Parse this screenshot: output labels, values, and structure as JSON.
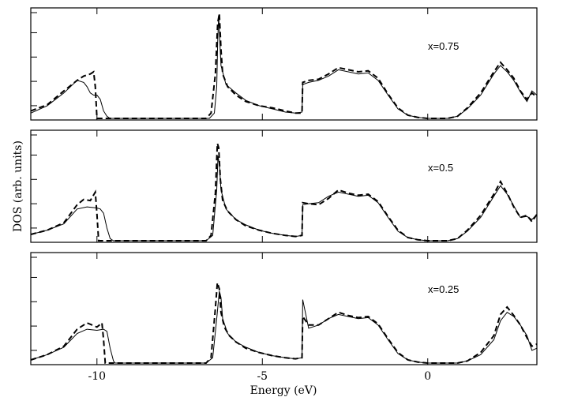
{
  "chart_data": {
    "type": "line",
    "xlabel": "Energy (eV)",
    "ylabel": "DOS  (arb. units)",
    "xlim": [
      -12,
      3.3
    ],
    "xticks": [
      -10,
      -5,
      0
    ],
    "xtick_labels": [
      "-10",
      "-5",
      "0"
    ],
    "ylim": [
      0,
      1
    ],
    "grid": false,
    "panels": [
      {
        "label": "x=0.75",
        "series": [
          {
            "style": "solid",
            "x": [
              -12.0,
              -11.5,
              -11.0,
              -10.6,
              -10.4,
              -10.3,
              -10.2,
              -10.1,
              -10.0,
              -9.9,
              -9.8,
              -9.7,
              -9.6,
              -9.5,
              -6.6,
              -6.45,
              -6.38,
              -6.35,
              -6.32,
              -6.3,
              -6.25,
              -6.1,
              -5.8,
              -5.5,
              -5.1,
              -4.7,
              -4.3,
              -4.0,
              -3.8,
              -3.78,
              -3.6,
              -3.3,
              -3.0,
              -2.7,
              -2.4,
              -2.1,
              -1.8,
              -1.5,
              -1.2,
              -0.9,
              -0.6,
              -0.3,
              0.0,
              0.3,
              0.6,
              0.9,
              1.2,
              1.6,
              2.0,
              2.2,
              2.4,
              2.6,
              2.8,
              3.0,
              3.15,
              3.3
            ],
            "y": [
              0.05,
              0.12,
              0.24,
              0.36,
              0.34,
              0.3,
              0.24,
              0.22,
              0.22,
              0.18,
              0.07,
              0.02,
              0.0,
              0.0,
              0.0,
              0.05,
              0.3,
              0.72,
              0.98,
              0.82,
              0.5,
              0.32,
              0.24,
              0.17,
              0.12,
              0.09,
              0.06,
              0.05,
              0.06,
              0.32,
              0.34,
              0.36,
              0.4,
              0.46,
              0.44,
              0.42,
              0.43,
              0.36,
              0.22,
              0.09,
              0.03,
              0.01,
              0.0,
              0.0,
              0.0,
              0.02,
              0.09,
              0.22,
              0.42,
              0.5,
              0.44,
              0.36,
              0.25,
              0.16,
              0.26,
              0.22
            ]
          },
          {
            "style": "dashed",
            "x": [
              -12.0,
              -11.5,
              -11.0,
              -10.6,
              -10.4,
              -10.2,
              -10.1,
              -10.05,
              -10.0,
              -9.95,
              -9.9,
              -6.7,
              -6.55,
              -6.42,
              -6.35,
              -6.3,
              -6.25,
              -6.2,
              -6.05,
              -5.8,
              -5.5,
              -5.1,
              -4.7,
              -4.3,
              -4.0,
              -3.8,
              -3.78,
              -3.6,
              -3.3,
              -3.0,
              -2.7,
              -2.4,
              -2.1,
              -1.8,
              -1.5,
              -1.2,
              -0.9,
              -0.6,
              -0.3,
              0.0,
              0.3,
              0.6,
              0.9,
              1.2,
              1.6,
              2.0,
              2.2,
              2.4,
              2.6,
              2.8,
              3.0,
              3.15,
              3.3
            ],
            "y": [
              0.07,
              0.13,
              0.26,
              0.36,
              0.4,
              0.42,
              0.44,
              0.3,
              0.0,
              0.0,
              0.0,
              0.0,
              0.05,
              0.42,
              0.9,
              0.99,
              0.65,
              0.42,
              0.3,
              0.22,
              0.16,
              0.12,
              0.1,
              0.07,
              0.05,
              0.05,
              0.34,
              0.36,
              0.37,
              0.42,
              0.48,
              0.46,
              0.44,
              0.45,
              0.38,
              0.23,
              0.1,
              0.03,
              0.01,
              0.0,
              0.0,
              0.0,
              0.02,
              0.1,
              0.24,
              0.44,
              0.53,
              0.46,
              0.38,
              0.26,
              0.18,
              0.24,
              0.2
            ]
          }
        ]
      },
      {
        "label": "x=0.5",
        "series": [
          {
            "style": "solid",
            "x": [
              -12.0,
              -11.5,
              -11.0,
              -10.6,
              -10.3,
              -10.0,
              -9.9,
              -9.8,
              -9.7,
              -9.6,
              -9.5,
              -6.7,
              -6.5,
              -6.38,
              -6.34,
              -6.3,
              -6.25,
              -6.1,
              -5.8,
              -5.5,
              -5.1,
              -4.7,
              -4.3,
              -4.0,
              -3.8,
              -3.78,
              -3.6,
              -3.3,
              -3.0,
              -2.7,
              -2.4,
              -2.1,
              -1.8,
              -1.5,
              -1.2,
              -0.9,
              -0.6,
              -0.3,
              0.0,
              0.3,
              0.6,
              0.9,
              1.2,
              1.6,
              2.0,
              2.2,
              2.4,
              2.6,
              2.8,
              3.0,
              3.15,
              3.3
            ],
            "y": [
              0.06,
              0.1,
              0.16,
              0.3,
              0.32,
              0.31,
              0.3,
              0.26,
              0.12,
              0.02,
              0.0,
              0.0,
              0.05,
              0.48,
              0.8,
              0.72,
              0.48,
              0.3,
              0.2,
              0.15,
              0.1,
              0.07,
              0.05,
              0.04,
              0.05,
              0.34,
              0.35,
              0.36,
              0.42,
              0.46,
              0.44,
              0.42,
              0.43,
              0.36,
              0.22,
              0.09,
              0.03,
              0.01,
              0.0,
              0.0,
              0.0,
              0.02,
              0.09,
              0.22,
              0.42,
              0.52,
              0.44,
              0.33,
              0.22,
              0.23,
              0.2,
              0.25
            ]
          },
          {
            "style": "dashed",
            "x": [
              -12.0,
              -11.5,
              -11.0,
              -10.6,
              -10.4,
              -10.2,
              -10.05,
              -10.0,
              -9.95,
              -9.9,
              -6.7,
              -6.55,
              -6.42,
              -6.36,
              -6.32,
              -6.27,
              -6.2,
              -6.05,
              -5.8,
              -5.5,
              -5.1,
              -4.7,
              -4.3,
              -4.0,
              -3.8,
              -3.78,
              -3.6,
              -3.3,
              -3.0,
              -2.7,
              -2.4,
              -2.1,
              -1.8,
              -1.5,
              -1.2,
              -0.9,
              -0.6,
              -0.3,
              0.0,
              0.3,
              0.6,
              0.9,
              1.2,
              1.6,
              2.0,
              2.2,
              2.4,
              2.6,
              2.8,
              3.0,
              3.15,
              3.3
            ],
            "y": [
              0.06,
              0.1,
              0.17,
              0.34,
              0.39,
              0.38,
              0.46,
              0.25,
              0.0,
              0.0,
              0.0,
              0.05,
              0.45,
              0.92,
              0.88,
              0.58,
              0.38,
              0.28,
              0.2,
              0.14,
              0.1,
              0.07,
              0.05,
              0.04,
              0.05,
              0.36,
              0.35,
              0.34,
              0.4,
              0.48,
              0.45,
              0.43,
              0.44,
              0.37,
              0.23,
              0.1,
              0.03,
              0.01,
              0.0,
              0.0,
              0.0,
              0.02,
              0.1,
              0.24,
              0.44,
              0.56,
              0.45,
              0.32,
              0.22,
              0.24,
              0.18,
              0.25
            ]
          }
        ]
      },
      {
        "label": "x=0.25",
        "series": [
          {
            "style": "solid",
            "x": [
              -12.0,
              -11.5,
              -11.0,
              -10.6,
              -10.3,
              -10.0,
              -9.8,
              -9.7,
              -9.6,
              -9.5,
              -9.45,
              -6.7,
              -6.5,
              -6.38,
              -6.3,
              -6.25,
              -6.2,
              -6.05,
              -5.8,
              -5.5,
              -5.1,
              -4.7,
              -4.3,
              -4.0,
              -3.8,
              -3.78,
              -3.6,
              -3.3,
              -3.0,
              -2.7,
              -2.4,
              -2.1,
              -1.8,
              -1.5,
              -1.2,
              -0.9,
              -0.6,
              -0.3,
              0.0,
              0.3,
              0.6,
              0.9,
              1.2,
              1.6,
              2.0,
              2.2,
              2.4,
              2.6,
              2.8,
              3.0,
              3.15,
              3.3
            ],
            "y": [
              0.03,
              0.08,
              0.15,
              0.28,
              0.32,
              0.31,
              0.32,
              0.3,
              0.14,
              0.02,
              0.0,
              0.0,
              0.05,
              0.42,
              0.68,
              0.62,
              0.42,
              0.28,
              0.2,
              0.15,
              0.1,
              0.07,
              0.05,
              0.04,
              0.05,
              0.6,
              0.33,
              0.36,
              0.42,
              0.46,
              0.44,
              0.42,
              0.43,
              0.36,
              0.22,
              0.09,
              0.03,
              0.01,
              0.0,
              0.0,
              0.0,
              0.0,
              0.02,
              0.08,
              0.22,
              0.4,
              0.48,
              0.44,
              0.36,
              0.26,
              0.12,
              0.14
            ]
          },
          {
            "style": "dashed",
            "x": [
              -12.0,
              -11.5,
              -11.0,
              -10.6,
              -10.3,
              -10.0,
              -9.85,
              -9.8,
              -9.75,
              -9.7,
              -6.7,
              -6.55,
              -6.42,
              -6.36,
              -6.3,
              -6.25,
              -6.15,
              -6.0,
              -5.8,
              -5.5,
              -5.1,
              -4.7,
              -4.3,
              -4.0,
              -3.8,
              -3.78,
              -3.6,
              -3.3,
              -3.0,
              -2.7,
              -2.4,
              -2.1,
              -1.8,
              -1.5,
              -1.2,
              -0.9,
              -0.6,
              -0.3,
              0.0,
              0.3,
              0.6,
              0.9,
              1.2,
              1.6,
              2.0,
              2.2,
              2.4,
              2.6,
              2.8,
              3.0,
              3.15,
              3.3
            ],
            "y": [
              0.03,
              0.08,
              0.16,
              0.32,
              0.38,
              0.34,
              0.38,
              0.22,
              0.0,
              0.0,
              0.0,
              0.05,
              0.52,
              0.76,
              0.7,
              0.48,
              0.34,
              0.26,
              0.2,
              0.14,
              0.1,
              0.07,
              0.05,
              0.04,
              0.05,
              0.44,
              0.36,
              0.36,
              0.42,
              0.48,
              0.45,
              0.43,
              0.44,
              0.37,
              0.23,
              0.1,
              0.03,
              0.01,
              0.0,
              0.0,
              0.0,
              0.0,
              0.02,
              0.1,
              0.26,
              0.46,
              0.53,
              0.45,
              0.36,
              0.24,
              0.16,
              0.18
            ]
          }
        ]
      }
    ]
  }
}
